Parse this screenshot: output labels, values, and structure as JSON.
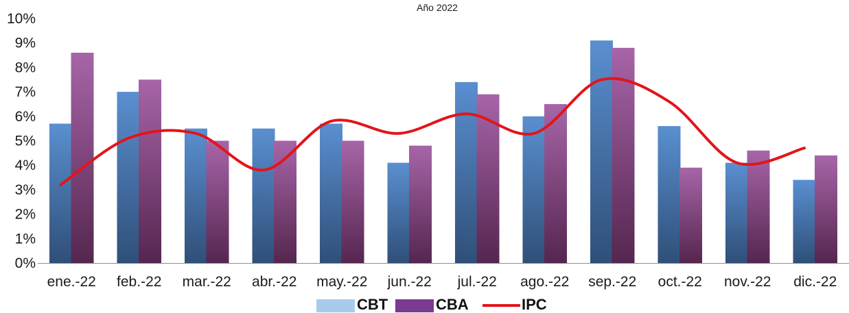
{
  "chart_data": {
    "type": "bar",
    "title": "Año 2022",
    "categories": [
      "ene.-22",
      "feb.-22",
      "mar.-22",
      "abr.-22",
      "may.-22",
      "jun.-22",
      "jul.-22",
      "ago.-22",
      "sep.-22",
      "oct.-22",
      "nov.-22",
      "dic.-22"
    ],
    "series": [
      {
        "name": "CBT",
        "kind": "bar",
        "values": [
          5.7,
          7.0,
          5.5,
          5.5,
          5.7,
          4.1,
          7.4,
          6.0,
          9.1,
          5.6,
          4.1,
          3.4
        ]
      },
      {
        "name": "CBA",
        "kind": "bar",
        "values": [
          8.6,
          7.5,
          5.0,
          5.0,
          5.0,
          4.8,
          6.9,
          6.5,
          8.8,
          3.9,
          4.6,
          4.4
        ]
      },
      {
        "name": "IPC",
        "kind": "line",
        "values": [
          3.2,
          5.1,
          5.3,
          3.8,
          5.8,
          5.3,
          6.1,
          5.3,
          7.5,
          6.6,
          4.1,
          4.7
        ]
      }
    ],
    "ylim": [
      0,
      10
    ],
    "y_ticks": [
      "0%",
      "1%",
      "2%",
      "3%",
      "4%",
      "5%",
      "6%",
      "7%",
      "8%",
      "9%",
      "10%"
    ],
    "xlabel": "",
    "ylabel": "",
    "grid": false,
    "legend_position": "bottom-center",
    "colors": {
      "cbt_top": "#5a8fd0",
      "cbt_bottom": "#2f4f78",
      "cbt_legend": "#a9cbeb",
      "cba_top": "#a765a8",
      "cba_bottom": "#55264f",
      "cba_legend": "#7a3a8f",
      "ipc": "#e3141a",
      "axis": "#8c8c8c"
    }
  }
}
